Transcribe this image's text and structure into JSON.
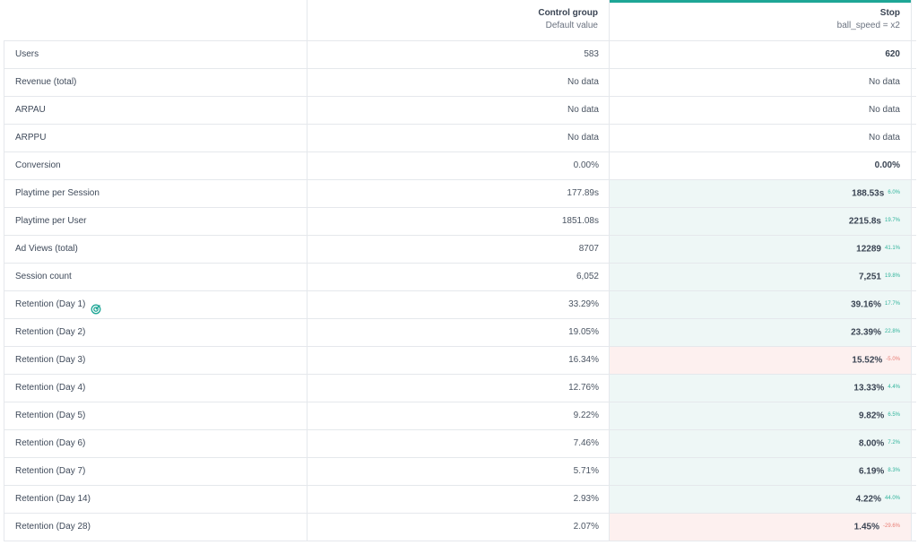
{
  "columns": {
    "control": {
      "title": "Control group",
      "subtitle": "Default value"
    },
    "variant": {
      "title": "Stop",
      "subtitle": "ball_speed = x2",
      "accent": "#1ea696"
    }
  },
  "colors": {
    "positive_bg": "#eef7f6",
    "negative_bg": "#fdf0ef",
    "positive_text": "#2fb39b",
    "negative_text": "#e87d74"
  },
  "rows": [
    {
      "name": "Users",
      "control": "583",
      "variant": "620",
      "delta": "",
      "trend": "none",
      "nodata": false
    },
    {
      "name": "Revenue (total)",
      "control": "No data",
      "variant": "No data",
      "delta": "",
      "trend": "none",
      "nodata": true
    },
    {
      "name": "ARPAU",
      "control": "No data",
      "variant": "No data",
      "delta": "",
      "trend": "none",
      "nodata": true
    },
    {
      "name": "ARPPU",
      "control": "No data",
      "variant": "No data",
      "delta": "",
      "trend": "none",
      "nodata": true
    },
    {
      "name": "Conversion",
      "control": "0.00%",
      "variant": "0.00%",
      "delta": "",
      "trend": "none",
      "nodata": false
    },
    {
      "name": "Playtime per Session",
      "control": "177.89s",
      "variant": "188.53s",
      "delta": "6.0%",
      "trend": "pos",
      "nodata": false
    },
    {
      "name": "Playtime per User",
      "control": "1851.08s",
      "variant": "2215.8s",
      "delta": "19.7%",
      "trend": "pos",
      "nodata": false
    },
    {
      "name": "Ad Views (total)",
      "control": "8707",
      "variant": "12289",
      "delta": "41.1%",
      "trend": "pos",
      "nodata": false
    },
    {
      "name": "Session count",
      "control": "6,052",
      "variant": "7,251",
      "delta": "19.8%",
      "trend": "pos",
      "nodata": false
    },
    {
      "name": "Retention (Day 1)",
      "control": "33.29%",
      "variant": "39.16%",
      "delta": "17.7%",
      "trend": "pos",
      "nodata": false,
      "icon": "target-icon"
    },
    {
      "name": "Retention (Day 2)",
      "control": "19.05%",
      "variant": "23.39%",
      "delta": "22.8%",
      "trend": "pos",
      "nodata": false
    },
    {
      "name": "Retention (Day 3)",
      "control": "16.34%",
      "variant": "15.52%",
      "delta": "-5.0%",
      "trend": "neg",
      "nodata": false
    },
    {
      "name": "Retention (Day 4)",
      "control": "12.76%",
      "variant": "13.33%",
      "delta": "4.4%",
      "trend": "pos",
      "nodata": false
    },
    {
      "name": "Retention (Day 5)",
      "control": "9.22%",
      "variant": "9.82%",
      "delta": "6.5%",
      "trend": "pos",
      "nodata": false
    },
    {
      "name": "Retention (Day 6)",
      "control": "7.46%",
      "variant": "8.00%",
      "delta": "7.2%",
      "trend": "pos",
      "nodata": false
    },
    {
      "name": "Retention (Day 7)",
      "control": "5.71%",
      "variant": "6.19%",
      "delta": "8.3%",
      "trend": "pos",
      "nodata": false
    },
    {
      "name": "Retention (Day 14)",
      "control": "2.93%",
      "variant": "4.22%",
      "delta": "44.0%",
      "trend": "pos",
      "nodata": false
    },
    {
      "name": "Retention (Day 28)",
      "control": "2.07%",
      "variant": "1.45%",
      "delta": "-29.6%",
      "trend": "neg",
      "nodata": false
    }
  ]
}
